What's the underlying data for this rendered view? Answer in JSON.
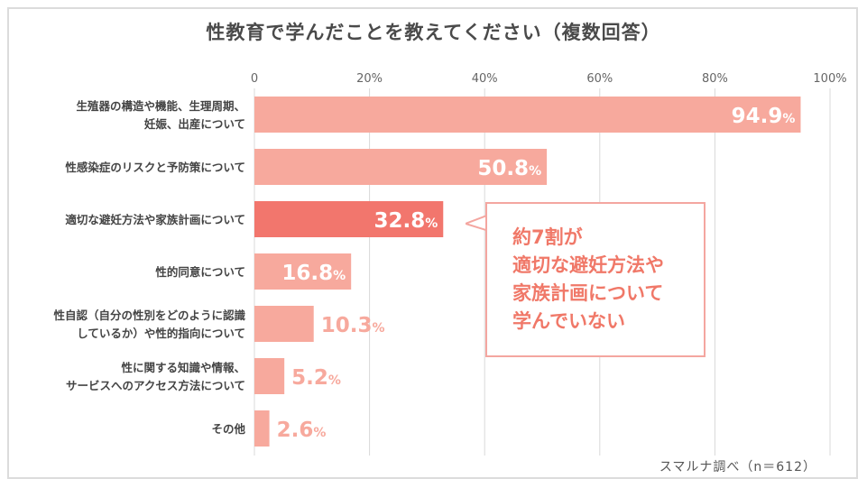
{
  "title": "性教育で学んだことを教えてください（複数回答）",
  "source": "スマルナ調べ（n＝612）",
  "callout": {
    "lines": [
      "約7割が",
      "適切な避妊方法や",
      "家族計画について",
      "学んでいない"
    ]
  },
  "colors": {
    "bar": "#f7a99d",
    "bar_highlight": "#f2766d",
    "grid": "#d9d9d9",
    "axis_label": "#666666",
    "category_label": "#444444",
    "outside_label": "#f7a99d",
    "inside_label": "#ffffff"
  },
  "chart_data": {
    "type": "bar",
    "orientation": "horizontal",
    "title": "性教育で学んだことを教えてください（複数回答）",
    "xlim": [
      0,
      100
    ],
    "grid": true,
    "x_ticks": [
      "0",
      "20%",
      "40%",
      "60%",
      "80%",
      "100%"
    ],
    "x_tick_values": [
      0,
      20,
      40,
      60,
      80,
      100
    ],
    "value_suffix": "%",
    "categories": [
      [
        "生殖器の構造や機能、生理周期、",
        "妊娠、出産について"
      ],
      [
        "性感染症のリスクと予防策について"
      ],
      [
        "適切な避妊方法や家族計画について"
      ],
      [
        "性的同意について"
      ],
      [
        "性自認（自分の性別をどのように認識",
        "しているか）や性的指向について"
      ],
      [
        "性に関する知識や情報、",
        "サービスへのアクセス方法について"
      ],
      [
        "その他"
      ]
    ],
    "values": [
      94.9,
      50.8,
      32.8,
      16.8,
      10.3,
      5.2,
      2.6
    ],
    "value_labels": [
      "94.9",
      "50.8",
      "32.8",
      "16.8",
      "10.3",
      "5.2",
      "2.6"
    ],
    "highlight_index": 2
  }
}
